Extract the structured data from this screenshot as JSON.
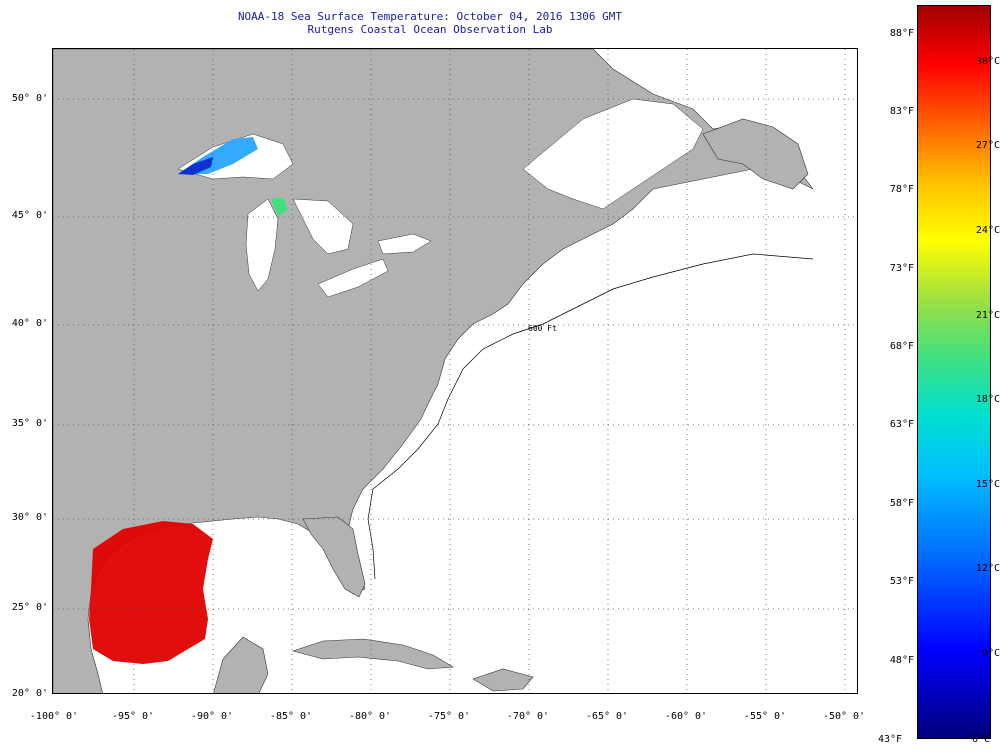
{
  "title": {
    "line1": "NOAA-18 Sea Surface Temperature:  October 04, 2016 1306 GMT",
    "line2": "Rutgens Coastal Ocean Observation Lab"
  },
  "map": {
    "lat_labels": [
      "50° 0'",
      "45° 0'",
      "40° 0'",
      "35° 0'",
      "30° 0'",
      "25° 0'",
      "20° 0'"
    ],
    "lon_labels": [
      "-100° 0'",
      "-95° 0'",
      "-90° 0'",
      "-85° 0'",
      "-80° 0'",
      "-75° 0'",
      "-70° 0'",
      "-65° 0'",
      "-60° 0'",
      "-55° 0'",
      "-50° 0'"
    ],
    "contour_labels": [
      "600 Ft"
    ],
    "colors": {
      "land": "#b2b2b2",
      "ocean_nodata": "#ffffff",
      "sst_warm": "#e00000",
      "sst_cool": "#33aaff"
    }
  },
  "colorbar": {
    "fahrenheit": [
      "88°F",
      "83°F",
      "78°F",
      "73°F",
      "68°F",
      "63°F",
      "58°F",
      "53°F",
      "48°F"
    ],
    "celsius": [
      "30°C",
      "27°C",
      "24°C",
      "21°C",
      "18°C",
      "15°C",
      "12°C",
      "9°C"
    ],
    "bottom_f": "43°F",
    "bottom_c": "6°C"
  }
}
